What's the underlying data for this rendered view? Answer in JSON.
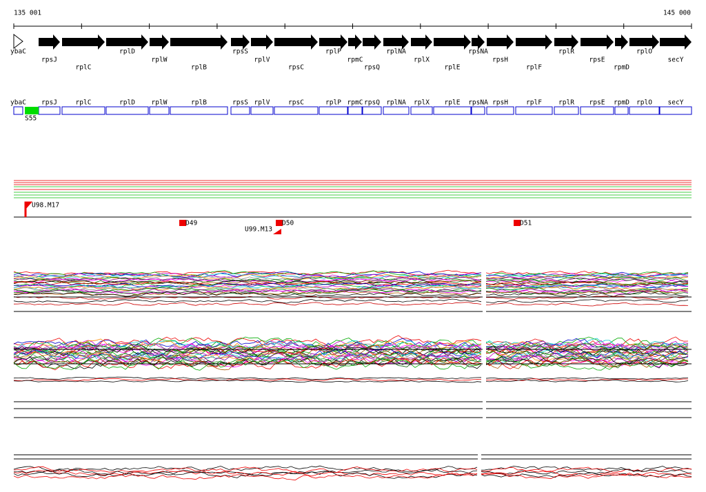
{
  "ruler": {
    "start": "135 001",
    "end": "145 000"
  },
  "genes": [
    "ybaC",
    "rpsJ",
    "rplC",
    "rplD",
    "rplW",
    "rplB",
    "rpsS",
    "rplV",
    "rpsC",
    "rplP",
    "rpmC",
    "rpsQ",
    "rplNA",
    "rplX",
    "rplE",
    "rpsNA",
    "rpsH",
    "rplF",
    "rplR",
    "rpsE",
    "rpmD",
    "rplO",
    "secY"
  ],
  "feature": "S55",
  "markers": [
    "U98.M17",
    "D49",
    "D50",
    "U99.M13",
    "D51"
  ]
}
